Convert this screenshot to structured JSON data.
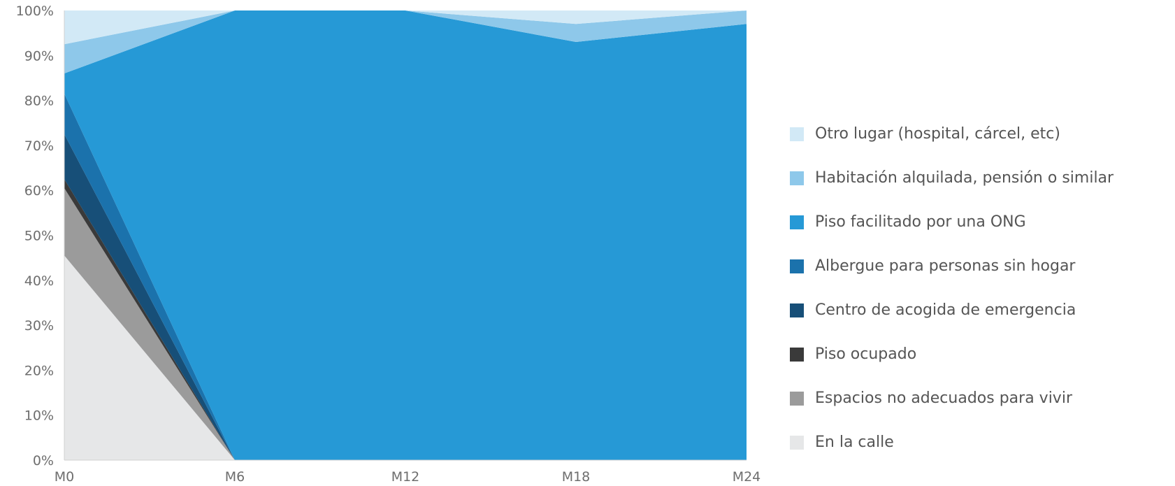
{
  "chart_data": {
    "type": "area",
    "stacked": true,
    "categories": [
      "M0",
      "M6",
      "M12",
      "M18",
      "M24"
    ],
    "ylim": [
      0,
      100
    ],
    "yticks": [
      "0%",
      "10%",
      "20%",
      "30%",
      "40%",
      "50%",
      "60%",
      "70%",
      "80%",
      "90%",
      "100%"
    ],
    "title": "",
    "xlabel": "",
    "ylabel": "",
    "grid": false,
    "legend_position": "right",
    "series": [
      {
        "name": "En la calle",
        "color": "#e6e7e8",
        "values": [
          45.5,
          0,
          0,
          0,
          0
        ]
      },
      {
        "name": "Espacios no adecuados para vivir",
        "color": "#9b9b9b",
        "values": [
          15,
          0,
          0,
          0,
          0
        ]
      },
      {
        "name": "Piso ocupado",
        "color": "#3a3a3a",
        "values": [
          2,
          0,
          0,
          0,
          0
        ]
      },
      {
        "name": "Centro de acogida de emergencia",
        "color": "#174f78",
        "values": [
          10,
          0,
          0,
          0,
          0
        ]
      },
      {
        "name": "Albergue para personas sin hogar",
        "color": "#1b72ac",
        "values": [
          9,
          0,
          0,
          0,
          0
        ]
      },
      {
        "name": "Piso facilitado por una ONG",
        "color": "#2699d6",
        "values": [
          4.5,
          100,
          100,
          93,
          97
        ]
      },
      {
        "name": "Habitación alquilada, pensión o similar",
        "color": "#8ec8ea",
        "values": [
          6.5,
          0,
          0,
          4,
          3
        ]
      },
      {
        "name": "Otro lugar (hospital, cárcel, etc)",
        "color": "#d2e9f6",
        "values": [
          7.5,
          0,
          0,
          3,
          0
        ]
      }
    ]
  }
}
